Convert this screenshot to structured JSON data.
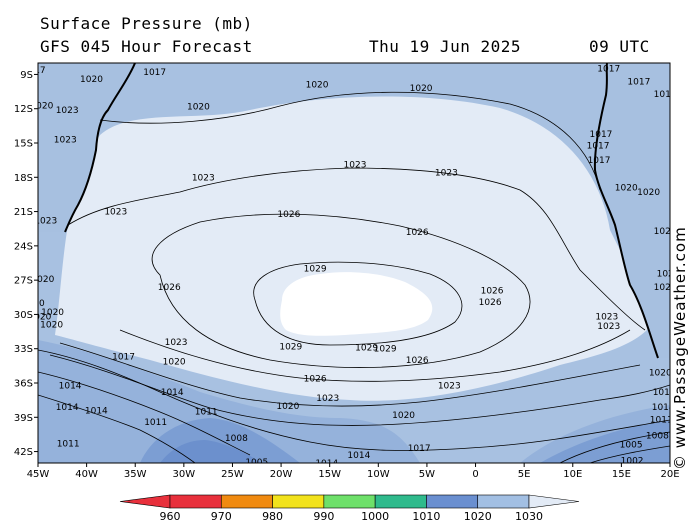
{
  "header": {
    "title": "Surface Pressure (mb)",
    "forecast": "GFS 045 Hour Forecast",
    "date": "Thu 19 Jun 2025",
    "time": "09 UTC"
  },
  "credit": "© www.PassageWeather.com",
  "map": {
    "lon_range": [
      -45,
      20
    ],
    "lat_range": [
      -43,
      -8
    ],
    "lon_ticks": [
      {
        "v": -45,
        "label": "45W"
      },
      {
        "v": -40,
        "label": "40W"
      },
      {
        "v": -35,
        "label": "35W"
      },
      {
        "v": -30,
        "label": "30W"
      },
      {
        "v": -25,
        "label": "25W"
      },
      {
        "v": -20,
        "label": "20W"
      },
      {
        "v": -15,
        "label": "15W"
      },
      {
        "v": -10,
        "label": "10W"
      },
      {
        "v": -5,
        "label": "5W"
      },
      {
        "v": 0,
        "label": "0"
      },
      {
        "v": 5,
        "label": "5E"
      },
      {
        "v": 10,
        "label": "10E"
      },
      {
        "v": 15,
        "label": "15E"
      },
      {
        "v": 20,
        "label": "20E"
      }
    ],
    "lat_ticks": [
      {
        "v": -9,
        "label": "9S"
      },
      {
        "v": -12,
        "label": "12S"
      },
      {
        "v": -15,
        "label": "15S"
      },
      {
        "v": -18,
        "label": "18S"
      },
      {
        "v": -21,
        "label": "21S"
      },
      {
        "v": -24,
        "label": "24S"
      },
      {
        "v": -27,
        "label": "27S"
      },
      {
        "v": -30,
        "label": "30S"
      },
      {
        "v": -33,
        "label": "33S"
      },
      {
        "v": -36,
        "label": "36S"
      },
      {
        "v": -39,
        "label": "39S"
      },
      {
        "v": -42,
        "label": "42S"
      }
    ],
    "isobar_labels": [
      {
        "lon": -44.8,
        "lat": -8.6,
        "text": "17"
      },
      {
        "lon": -39.5,
        "lat": -9.4,
        "text": "1020"
      },
      {
        "lon": -33.0,
        "lat": -8.8,
        "text": "1017"
      },
      {
        "lon": -44.6,
        "lat": -11.7,
        "text": "1020"
      },
      {
        "lon": -42.0,
        "lat": -12.1,
        "text": "1023"
      },
      {
        "lon": -28.5,
        "lat": -11.8,
        "text": "1020"
      },
      {
        "lon": -16.3,
        "lat": -9.9,
        "text": "1020"
      },
      {
        "lon": -5.6,
        "lat": -10.2,
        "text": "1020"
      },
      {
        "lon": -42.2,
        "lat": -14.7,
        "text": "1023"
      },
      {
        "lon": -44.2,
        "lat": -21.8,
        "text": "1023"
      },
      {
        "lon": -28.0,
        "lat": -18.0,
        "text": "1023"
      },
      {
        "lon": -12.4,
        "lat": -16.9,
        "text": "1023"
      },
      {
        "lon": -3.0,
        "lat": -17.6,
        "text": "1023"
      },
      {
        "lon": -37.0,
        "lat": -21.0,
        "text": "1023"
      },
      {
        "lon": -19.2,
        "lat": -21.2,
        "text": "1026"
      },
      {
        "lon": -6.0,
        "lat": -22.8,
        "text": "1026"
      },
      {
        "lon": -31.5,
        "lat": -27.6,
        "text": "1026"
      },
      {
        "lon": 1.7,
        "lat": -27.9,
        "text": "1026"
      },
      {
        "lon": 1.5,
        "lat": -28.9,
        "text": "1026"
      },
      {
        "lon": -16.5,
        "lat": -26.0,
        "text": "1029"
      },
      {
        "lon": -19.0,
        "lat": -32.8,
        "text": "1029"
      },
      {
        "lon": -11.2,
        "lat": -32.9,
        "text": "1029"
      },
      {
        "lon": -9.3,
        "lat": -33.0,
        "text": "1029"
      },
      {
        "lon": -30.8,
        "lat": -32.4,
        "text": "1023"
      },
      {
        "lon": -31.0,
        "lat": -34.1,
        "text": "1020"
      },
      {
        "lon": -6.0,
        "lat": -34.0,
        "text": "1026"
      },
      {
        "lon": -16.5,
        "lat": -35.6,
        "text": "1026"
      },
      {
        "lon": -15.2,
        "lat": -37.3,
        "text": "1023"
      },
      {
        "lon": -2.7,
        "lat": -36.2,
        "text": "1023"
      },
      {
        "lon": -19.3,
        "lat": -38.0,
        "text": "1020"
      },
      {
        "lon": -7.4,
        "lat": -38.8,
        "text": "1020"
      },
      {
        "lon": -36.2,
        "lat": -33.7,
        "text": "1017"
      },
      {
        "lon": -44.5,
        "lat": -26.9,
        "text": "1020"
      },
      {
        "lon": -44.9,
        "lat": -29.0,
        "text": "20"
      },
      {
        "lon": -43.5,
        "lat": -29.8,
        "text": "1020"
      },
      {
        "lon": -44.8,
        "lat": -30.2,
        "text": "1020"
      },
      {
        "lon": -43.6,
        "lat": -30.9,
        "text": "1020"
      },
      {
        "lon": -41.7,
        "lat": -36.2,
        "text": "1014"
      },
      {
        "lon": -31.2,
        "lat": -36.8,
        "text": "1014"
      },
      {
        "lon": -42.0,
        "lat": -38.1,
        "text": "1014"
      },
      {
        "lon": -39.0,
        "lat": -38.4,
        "text": "1014"
      },
      {
        "lon": -27.7,
        "lat": -38.5,
        "text": "1011"
      },
      {
        "lon": -32.9,
        "lat": -39.4,
        "text": "1011"
      },
      {
        "lon": -41.9,
        "lat": -41.3,
        "text": "1011"
      },
      {
        "lon": -24.6,
        "lat": -40.8,
        "text": "1008"
      },
      {
        "lon": -22.5,
        "lat": -42.9,
        "text": "1005"
      },
      {
        "lon": -15.3,
        "lat": -43.0,
        "text": "1014"
      },
      {
        "lon": -12.0,
        "lat": -42.3,
        "text": "1014"
      },
      {
        "lon": -5.8,
        "lat": -41.7,
        "text": "1017"
      },
      {
        "lon": 13.7,
        "lat": -8.5,
        "text": "1017"
      },
      {
        "lon": 16.8,
        "lat": -9.6,
        "text": "1017"
      },
      {
        "lon": 19.5,
        "lat": -10.7,
        "text": "1017"
      },
      {
        "lon": 12.9,
        "lat": -14.2,
        "text": "1017"
      },
      {
        "lon": 12.6,
        "lat": -15.2,
        "text": "1017"
      },
      {
        "lon": 12.7,
        "lat": -16.5,
        "text": "1017"
      },
      {
        "lon": 15.5,
        "lat": -18.9,
        "text": "1020"
      },
      {
        "lon": 17.8,
        "lat": -19.3,
        "text": "1020"
      },
      {
        "lon": 19.5,
        "lat": -22.7,
        "text": "1020"
      },
      {
        "lon": 19.8,
        "lat": -26.4,
        "text": "1020"
      },
      {
        "lon": 19.5,
        "lat": -27.6,
        "text": "1020"
      },
      {
        "lon": 13.5,
        "lat": -30.2,
        "text": "1023"
      },
      {
        "lon": 13.7,
        "lat": -31.0,
        "text": "1023"
      },
      {
        "lon": 19.0,
        "lat": -35.1,
        "text": "1020"
      },
      {
        "lon": 19.4,
        "lat": -36.8,
        "text": "1017"
      },
      {
        "lon": 19.3,
        "lat": -38.1,
        "text": "1014"
      },
      {
        "lon": 19.1,
        "lat": -39.2,
        "text": "1011"
      },
      {
        "lon": 18.7,
        "lat": -40.6,
        "text": "1008"
      },
      {
        "lon": 16.0,
        "lat": -41.4,
        "text": "1005"
      },
      {
        "lon": 16.1,
        "lat": -42.8,
        "text": "1002"
      }
    ]
  },
  "legend": {
    "values": [
      "960",
      "970",
      "980",
      "990",
      "1000",
      "1010",
      "1020",
      "1030"
    ],
    "colors": [
      "#e8303c",
      "#f08a10",
      "#f2e21c",
      "#6ee06a",
      "#2fba8c",
      "#6a8fd0",
      "#a2bfe3",
      "#e3ebf6"
    ]
  },
  "colors": {
    "land": "#a7c0e0",
    "band_1020": "#a8c1e1",
    "band_1023": "#e3ebf6",
    "band_1030": "#ffffff",
    "band_1014": "#95b2db",
    "band_1011": "#7c9ed3",
    "band_1008": "#6c90cd",
    "coast": "#000000"
  }
}
